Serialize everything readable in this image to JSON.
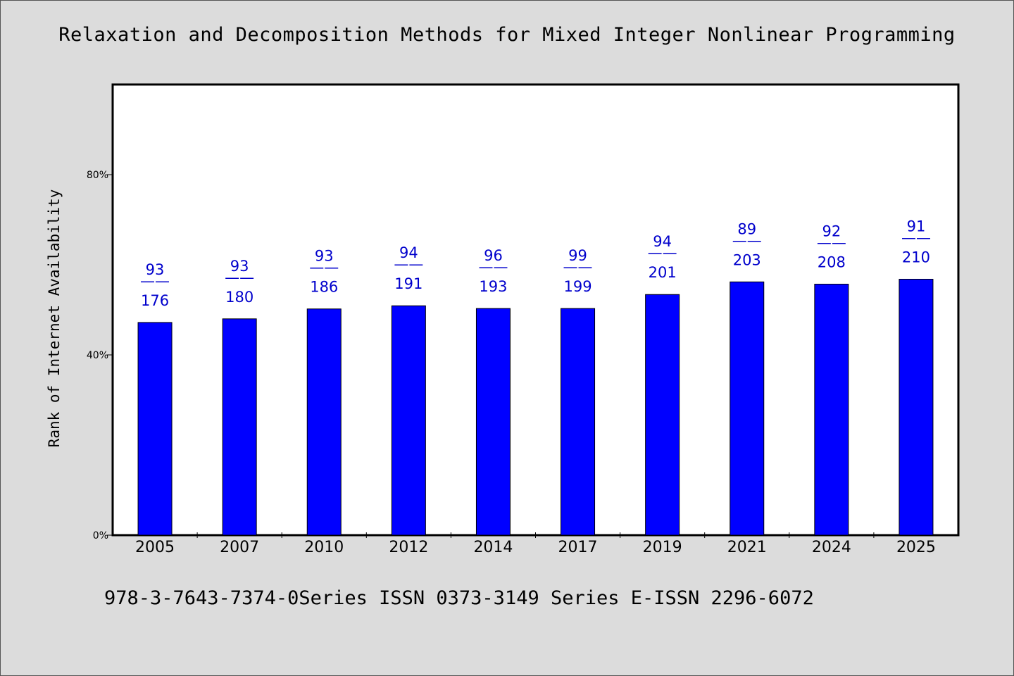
{
  "title": "Relaxation and Decomposition Methods for Mixed Integer Nonlinear Programming",
  "footer": "978-3-7643-7374-0Series ISSN 0373-3149 Series E-ISSN 2296-6072",
  "colors": {
    "bar": "#0000ff",
    "label": "#0000cc",
    "background": "#dcdcdc",
    "plot": "#ffffff"
  },
  "chart_data": {
    "type": "bar",
    "title": "Relaxation and Decomposition Methods for Mixed Integer Nonlinear Programming",
    "xlabel": "",
    "ylabel": "Rank of Internet Availability",
    "ylim": [
      0,
      100
    ],
    "yticks": [
      0,
      40,
      80
    ],
    "ytick_labels": [
      "0%",
      "40%",
      "80%"
    ],
    "categories": [
      "2005",
      "2007",
      "2010",
      "2012",
      "2014",
      "2017",
      "2019",
      "2021",
      "2024",
      "2025"
    ],
    "values": [
      47.2,
      48.0,
      50.2,
      50.9,
      50.3,
      50.3,
      53.4,
      56.2,
      55.7,
      56.8
    ],
    "data_labels": [
      {
        "top": "93",
        "sep": "——",
        "bottom": "176"
      },
      {
        "top": "93",
        "sep": "——",
        "bottom": "180"
      },
      {
        "top": "93",
        "sep": "——",
        "bottom": "186"
      },
      {
        "top": "94",
        "sep": "——",
        "bottom": "191"
      },
      {
        "top": "96",
        "sep": "——",
        "bottom": "193"
      },
      {
        "top": "99",
        "sep": "——",
        "bottom": "199"
      },
      {
        "top": "94",
        "sep": "——",
        "bottom": "201"
      },
      {
        "top": "89",
        "sep": "——",
        "bottom": "203"
      },
      {
        "top": "92",
        "sep": "——",
        "bottom": "208"
      },
      {
        "top": "91",
        "sep": "——",
        "bottom": "210"
      }
    ],
    "grid": false,
    "legend": "none"
  }
}
